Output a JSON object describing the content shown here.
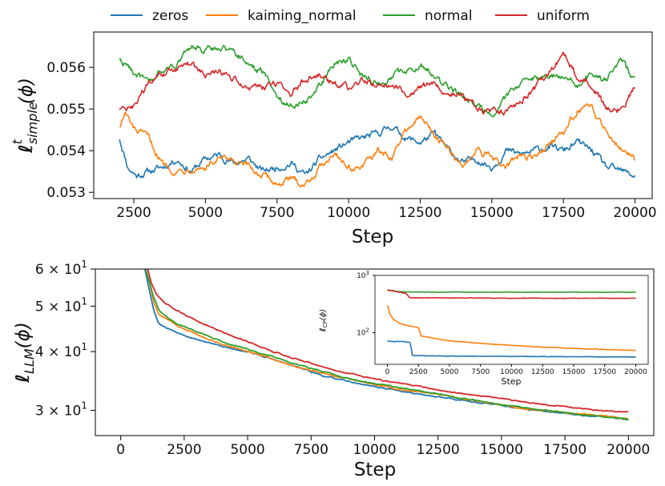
{
  "legend": {
    "placement": "top-center, outside plots",
    "entries": [
      {
        "label": "zeros",
        "color": "#1f77b4"
      },
      {
        "label": "kaiming_normal",
        "color": "#ff7f0e"
      },
      {
        "label": "normal",
        "color": "#2ca02c"
      },
      {
        "label": "uniform",
        "color": "#d62728"
      }
    ]
  },
  "chart_data": [
    {
      "type": "line",
      "xlabel": "Step",
      "ylabel": "ℓ^t_simple(ϕ)",
      "ylabel_main": "ℓ",
      "ylabel_sup": "t",
      "ylabel_sub": "simple",
      "ylabel_tail": "(ϕ)",
      "xlim": [
        1100,
        20600
      ],
      "ylim": [
        0.05285,
        0.05685
      ],
      "xticks": [
        2500,
        5000,
        7500,
        10000,
        12500,
        15000,
        17500,
        20000
      ],
      "xtick_labels": [
        "2500",
        "5000",
        "7500",
        "10000",
        "12500",
        "15000",
        "17500",
        "20000"
      ],
      "yticks": [
        0.053,
        0.054,
        0.055,
        0.056
      ],
      "ytick_labels": [
        "0.053",
        "0.054",
        "0.055",
        "0.056"
      ],
      "grid": false,
      "series": [
        {
          "name": "zeros",
          "color": "#1f77b4",
          "x": [
            2000,
            2300,
            2600,
            3000,
            3500,
            4000,
            4500,
            5000,
            5500,
            6000,
            6500,
            7000,
            7500,
            8000,
            8500,
            9000,
            9500,
            10000,
            10500,
            11000,
            11500,
            12000,
            12500,
            13000,
            13500,
            14000,
            14500,
            15000,
            15500,
            16000,
            16500,
            17000,
            17500,
            18000,
            18500,
            19000,
            19500,
            20000
          ],
          "y": [
            0.0543,
            0.0536,
            0.0534,
            0.0535,
            0.0536,
            0.0538,
            0.0535,
            0.0538,
            0.0539,
            0.0537,
            0.0538,
            0.0535,
            0.0536,
            0.0537,
            0.0534,
            0.0538,
            0.054,
            0.0542,
            0.0543,
            0.0544,
            0.0546,
            0.0543,
            0.0542,
            0.0544,
            0.054,
            0.0537,
            0.0538,
            0.0536,
            0.054,
            0.0539,
            0.054,
            0.0541,
            0.054,
            0.0542,
            0.054,
            0.0536,
            0.0535,
            0.0534
          ]
        },
        {
          "name": "kaiming_normal",
          "color": "#ff7f0e",
          "x": [
            2000,
            2200,
            2500,
            3000,
            3500,
            4000,
            4500,
            5000,
            5500,
            6000,
            6500,
            7000,
            7500,
            8000,
            8500,
            9000,
            9500,
            10000,
            10500,
            11000,
            11500,
            12000,
            12500,
            13000,
            13500,
            14000,
            14500,
            15000,
            15500,
            16000,
            16500,
            17000,
            17500,
            18000,
            18500,
            19000,
            19500,
            20000
          ],
          "y": [
            0.0546,
            0.0549,
            0.0545,
            0.0543,
            0.0537,
            0.0535,
            0.0536,
            0.0536,
            0.0538,
            0.0537,
            0.0536,
            0.0534,
            0.0532,
            0.0533,
            0.0532,
            0.0536,
            0.054,
            0.0536,
            0.0536,
            0.054,
            0.0538,
            0.0545,
            0.0548,
            0.0544,
            0.054,
            0.0536,
            0.0541,
            0.0538,
            0.0536,
            0.0539,
            0.0538,
            0.0542,
            0.0544,
            0.055,
            0.055,
            0.0545,
            0.0541,
            0.0538
          ]
        },
        {
          "name": "normal",
          "color": "#2ca02c",
          "x": [
            2000,
            2500,
            3000,
            3500,
            4000,
            4500,
            5000,
            5500,
            6000,
            6500,
            7000,
            7500,
            8000,
            8500,
            9000,
            9500,
            10000,
            10500,
            11000,
            11500,
            12000,
            12500,
            13000,
            13500,
            14000,
            14500,
            15000,
            15500,
            16000,
            16500,
            17000,
            17500,
            18000,
            18500,
            19000,
            19500,
            20000
          ],
          "y": [
            0.0562,
            0.0559,
            0.0556,
            0.0559,
            0.0561,
            0.0565,
            0.0564,
            0.0565,
            0.0564,
            0.0561,
            0.0559,
            0.0553,
            0.0551,
            0.0552,
            0.0556,
            0.0561,
            0.0562,
            0.0558,
            0.0556,
            0.0558,
            0.0559,
            0.0561,
            0.0558,
            0.0555,
            0.0553,
            0.0551,
            0.0549,
            0.0553,
            0.0556,
            0.0557,
            0.0558,
            0.0558,
            0.0556,
            0.0558,
            0.0557,
            0.0562,
            0.0557
          ]
        },
        {
          "name": "uniform",
          "color": "#d62728",
          "x": [
            2000,
            2500,
            3000,
            3500,
            4000,
            4500,
            5000,
            5500,
            6000,
            6500,
            7000,
            7500,
            8000,
            8500,
            9000,
            9500,
            10000,
            10500,
            11000,
            11500,
            12000,
            12500,
            13000,
            13500,
            14000,
            14500,
            15000,
            15500,
            16000,
            16500,
            17000,
            17500,
            18000,
            18500,
            19000,
            19500,
            20000
          ],
          "y": [
            0.055,
            0.055,
            0.0556,
            0.0558,
            0.056,
            0.0561,
            0.0558,
            0.0559,
            0.0557,
            0.0555,
            0.0555,
            0.0556,
            0.0554,
            0.0557,
            0.0558,
            0.0556,
            0.0555,
            0.0557,
            0.0556,
            0.0556,
            0.0554,
            0.0555,
            0.0556,
            0.0554,
            0.0553,
            0.055,
            0.0549,
            0.0549,
            0.0552,
            0.0555,
            0.0559,
            0.0563,
            0.0558,
            0.0556,
            0.055,
            0.055,
            0.0555
          ]
        }
      ]
    },
    {
      "type": "line",
      "xlabel": "Step",
      "ylabel": "ℓ_LLM(ϕ)",
      "ylabel_main": "ℓ",
      "ylabel_sub": "LLM",
      "ylabel_tail": "(ϕ)",
      "yscale": "log",
      "xlim": [
        -1000,
        21000
      ],
      "ylim": [
        26.5,
        60
      ],
      "xticks": [
        0,
        2500,
        5000,
        7500,
        10000,
        12500,
        15000,
        17500,
        20000
      ],
      "xtick_labels": [
        "0",
        "2500",
        "5000",
        "7500",
        "10000",
        "12500",
        "15000",
        "17500",
        "20000"
      ],
      "yticks": [
        30,
        40,
        50,
        60
      ],
      "ytick_labels": [
        {
          "base": "3 × 10",
          "exp": "1"
        },
        {
          "base": "4 × 10",
          "exp": "1"
        },
        {
          "base": "5 × 10",
          "exp": "1"
        },
        {
          "base": "6 × 10",
          "exp": "1"
        }
      ],
      "grid": false,
      "series": [
        {
          "name": "zeros",
          "color": "#1f77b4",
          "x": [
            900,
            1100,
            1300,
            1500,
            1800,
            2200,
            3000,
            4000,
            5000,
            6000,
            7000,
            8000,
            9000,
            10000,
            11000,
            12000,
            13000,
            14000,
            15000,
            16000,
            17000,
            18000,
            19000,
            20000
          ],
          "y": [
            62,
            55,
            49,
            46,
            45,
            44,
            42.5,
            41,
            40,
            38.5,
            37,
            35.5,
            34.5,
            33.7,
            33,
            32.3,
            31.8,
            31.2,
            30.7,
            30.1,
            29.7,
            29.3,
            29.1,
            28.7
          ]
        },
        {
          "name": "kaiming_normal",
          "color": "#ff7f0e",
          "x": [
            900,
            1100,
            1300,
            1500,
            1800,
            2200,
            3000,
            4000,
            5000,
            6000,
            7000,
            8000,
            9000,
            10000,
            11000,
            12000,
            13000,
            14000,
            15000,
            16000,
            17000,
            18000,
            19000,
            20000
          ],
          "y": [
            62,
            57,
            51,
            48,
            47,
            45.5,
            43.5,
            41.5,
            40,
            38.5,
            37,
            36,
            35,
            34,
            33.2,
            32.7,
            32.1,
            31.4,
            30.8,
            30.2,
            29.8,
            29.5,
            29.2,
            28.8
          ]
        },
        {
          "name": "normal",
          "color": "#2ca02c",
          "x": [
            900,
            1100,
            1300,
            1500,
            1800,
            2200,
            3000,
            4000,
            5000,
            6000,
            7000,
            8000,
            9000,
            10000,
            11000,
            12000,
            13000,
            14000,
            15000,
            16000,
            17000,
            18000,
            19000,
            20000
          ],
          "y": [
            62,
            57,
            52,
            49,
            47.5,
            46,
            44,
            42,
            40.5,
            39,
            37.5,
            36.2,
            35,
            34.2,
            33.5,
            32.8,
            32.1,
            31.5,
            30.9,
            30.3,
            29.9,
            29.4,
            29.0,
            28.7
          ]
        },
        {
          "name": "uniform",
          "color": "#d62728",
          "x": [
            1000,
            1200,
            1400,
            1700,
            2200,
            3000,
            4000,
            5000,
            6000,
            7000,
            8000,
            9000,
            10000,
            11000,
            12000,
            13000,
            14000,
            15000,
            16000,
            17000,
            18000,
            19000,
            20000
          ],
          "y": [
            62,
            56,
            53,
            51,
            49,
            46.5,
            44,
            42,
            40,
            38.5,
            37,
            36,
            35,
            34.2,
            33.5,
            32.8,
            32.3,
            31.8,
            31.2,
            30.8,
            30.3,
            29.9,
            29.7
          ]
        }
      ]
    },
    {
      "type": "line",
      "role": "inset of second chart",
      "xlabel": "Step",
      "ylabel": "ℓ_CP(ϕ)",
      "ylabel_main": "ℓ",
      "ylabel_sub": "CP",
      "ylabel_tail": "(ϕ)",
      "yscale": "log",
      "xlim": [
        -1000,
        21000
      ],
      "ylim": [
        28,
        1000
      ],
      "xticks": [
        0,
        2500,
        5000,
        7500,
        10000,
        12500,
        15000,
        17500,
        20000
      ],
      "xtick_labels": [
        "0",
        "2500",
        "5000",
        "7500",
        "10000",
        "12500",
        "15000",
        "17500",
        "20000"
      ],
      "yticks": [
        100,
        1000
      ],
      "ytick_labels": [
        {
          "base": "10",
          "exp": "2"
        },
        {
          "base": "10",
          "exp": "3"
        }
      ],
      "grid": false,
      "series": [
        {
          "name": "zeros",
          "color": "#1f77b4",
          "x": [
            0,
            500,
            1200,
            1800,
            1950,
            2000,
            5000,
            10000,
            15000,
            20000
          ],
          "y": [
            72,
            70,
            70,
            68,
            50,
            40,
            39,
            38.5,
            38,
            37.5
          ]
        },
        {
          "name": "kaiming_normal",
          "color": "#ff7f0e",
          "x": [
            0,
            200,
            500,
            1000,
            1500,
            2000,
            2500,
            2700,
            3000,
            5000,
            7500,
            10000,
            12500,
            15000,
            17500,
            20000
          ],
          "y": [
            300,
            210,
            170,
            145,
            135,
            128,
            122,
            88,
            85,
            72,
            65,
            60,
            56,
            53,
            51,
            49
          ]
        },
        {
          "name": "normal",
          "color": "#2ca02c",
          "x": [
            0,
            500,
            1000,
            2000,
            5000,
            10000,
            15000,
            20000
          ],
          "y": [
            560,
            540,
            520,
            515,
            510,
            510,
            510,
            508
          ]
        },
        {
          "name": "uniform",
          "color": "#d62728",
          "x": [
            0,
            500,
            1000,
            1500,
            1800,
            2500,
            5000,
            10000,
            15000,
            20000
          ],
          "y": [
            550,
            530,
            510,
            480,
            410,
            405,
            405,
            400,
            400,
            400
          ]
        }
      ]
    }
  ]
}
